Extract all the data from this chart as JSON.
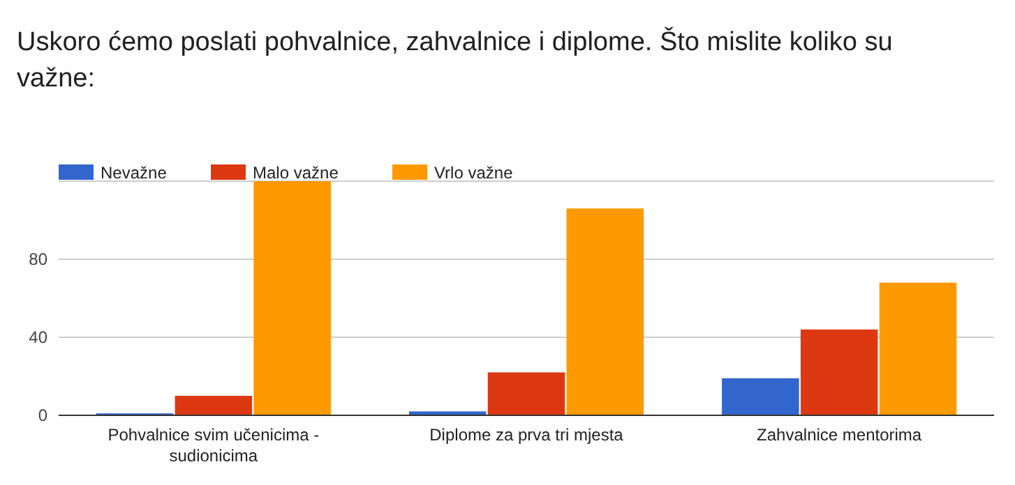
{
  "chart_data": {
    "type": "bar",
    "title": "Uskoro ćemo poslati pohvalnice, zahvalnice i diplome. Što mislite koliko su važne:",
    "categories": [
      "Pohvalnice svim učenicima - sudionicima",
      "Diplome za prva tri mjesta",
      "Zahvalnice mentorima"
    ],
    "series": [
      {
        "name": "Nevažne",
        "color": "#3366cc",
        "values": [
          1,
          2,
          19
        ]
      },
      {
        "name": "Malo važne",
        "color": "#dc3912",
        "values": [
          10,
          22,
          44
        ]
      },
      {
        "name": "Vrlo važne",
        "color": "#ff9900",
        "values": [
          120,
          106,
          68
        ]
      }
    ],
    "ylim": [
      0,
      120
    ],
    "yticks": [
      0,
      40,
      80,
      {
        "value": 120,
        "label": null
      }
    ],
    "grid": "y",
    "legend": "top left"
  }
}
